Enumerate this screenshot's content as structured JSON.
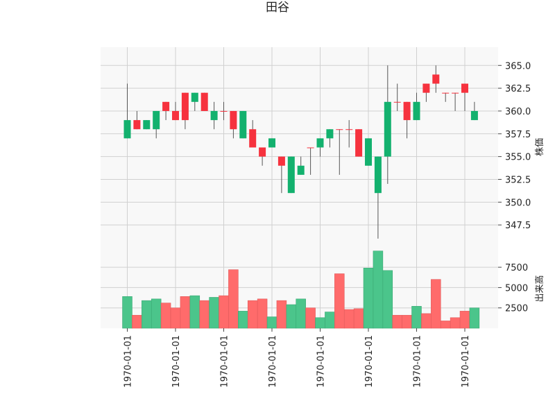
{
  "chart_data": {
    "type": "candlestick",
    "title": "田谷",
    "price_axis_label": "株価",
    "volume_axis_label": "出来高",
    "price_ylim": [
      345.0,
      367.0
    ],
    "price_ticks": [
      "365.0",
      "362.5",
      "360.0",
      "357.5",
      "355.0",
      "352.5",
      "350.0",
      "347.5"
    ],
    "volume_ylim": [
      0,
      9900
    ],
    "volume_ticks": [
      "7500",
      "5000",
      "2500"
    ],
    "x_tick_labels": [
      "1970-01-01",
      "1970-01-01",
      "1970-01-01",
      "1970-01-01",
      "1970-01-01",
      "1970-01-01",
      "1970-01-01",
      "1970-01-01"
    ],
    "x_tick_positions": [
      0.5,
      5.5,
      10.5,
      15.5,
      20.5,
      25.5,
      30.5,
      35.5
    ],
    "grid": true,
    "colors": {
      "up": "#f6323e",
      "down": "#13b16e",
      "up_volume": "#ff6b6b",
      "down_volume": "#4bc58b",
      "wick": "#555555",
      "plot_bg": "#f8f8f8",
      "grid": "#d0d0d0"
    },
    "candles": [
      {
        "open": 359,
        "close": 357,
        "high": 363,
        "low": 357,
        "volume": 3900
      },
      {
        "open": 358,
        "close": 359,
        "high": 360,
        "low": 358,
        "volume": 1600
      },
      {
        "open": 359,
        "close": 358,
        "high": 359,
        "low": 358,
        "volume": 3400
      },
      {
        "open": 360,
        "close": 358,
        "high": 360,
        "low": 357,
        "volume": 3600
      },
      {
        "open": 360,
        "close": 361,
        "high": 361,
        "low": 359,
        "volume": 3100
      },
      {
        "open": 359,
        "close": 360,
        "high": 361,
        "low": 359,
        "volume": 2500
      },
      {
        "open": 359,
        "close": 362,
        "high": 362,
        "low": 358,
        "volume": 3900
      },
      {
        "open": 362,
        "close": 361,
        "high": 362,
        "low": 360,
        "volume": 4000
      },
      {
        "open": 360,
        "close": 362,
        "high": 362,
        "low": 360,
        "volume": 3400
      },
      {
        "open": 360,
        "close": 359,
        "high": 361,
        "low": 358,
        "volume": 3800
      },
      {
        "open": 360,
        "close": 360,
        "high": 361,
        "low": 359,
        "volume": 4000
      },
      {
        "open": 358,
        "close": 360,
        "high": 360,
        "low": 357,
        "volume": 7200
      },
      {
        "open": 360,
        "close": 357,
        "high": 360,
        "low": 357,
        "volume": 2100
      },
      {
        "open": 356,
        "close": 358,
        "high": 359,
        "low": 356,
        "volume": 3400
      },
      {
        "open": 355,
        "close": 356,
        "high": 356,
        "low": 354,
        "volume": 3600
      },
      {
        "open": 357,
        "close": 356,
        "high": 357,
        "low": 356,
        "volume": 1400
      },
      {
        "open": 354,
        "close": 355,
        "high": 355,
        "low": 351,
        "volume": 3400
      },
      {
        "open": 355,
        "close": 351,
        "high": 355,
        "low": 351,
        "volume": 2900
      },
      {
        "open": 354,
        "close": 353,
        "high": 355,
        "low": 353,
        "volume": 3600
      },
      {
        "open": 356,
        "close": 356,
        "high": 356,
        "low": 353,
        "volume": 2500
      },
      {
        "open": 357,
        "close": 356,
        "high": 357,
        "low": 355,
        "volume": 1300
      },
      {
        "open": 358,
        "close": 357,
        "high": 358,
        "low": 356,
        "volume": 2000
      },
      {
        "open": 358,
        "close": 358,
        "high": 358,
        "low": 353,
        "volume": 6700
      },
      {
        "open": 358,
        "close": 358,
        "high": 359,
        "low": 356,
        "volume": 2300
      },
      {
        "open": 355,
        "close": 358,
        "high": 358,
        "low": 355,
        "volume": 2400
      },
      {
        "open": 357,
        "close": 354,
        "high": 357,
        "low": 354,
        "volume": 7400
      },
      {
        "open": 355,
        "close": 351,
        "high": 355,
        "low": 346,
        "volume": 9500
      },
      {
        "open": 361,
        "close": 355,
        "high": 365,
        "low": 352,
        "volume": 7100
      },
      {
        "open": 361,
        "close": 361,
        "high": 363,
        "low": 360,
        "volume": 1600
      },
      {
        "open": 359,
        "close": 361,
        "high": 361,
        "low": 357,
        "volume": 1600
      },
      {
        "open": 361,
        "close": 359,
        "high": 362,
        "low": 359,
        "volume": 2700
      },
      {
        "open": 362,
        "close": 363,
        "high": 363,
        "low": 361,
        "volume": 1800
      },
      {
        "open": 363,
        "close": 364,
        "high": 365,
        "low": 362,
        "volume": 6000
      },
      {
        "open": 362,
        "close": 362,
        "high": 362,
        "low": 361,
        "volume": 900
      },
      {
        "open": 362,
        "close": 362,
        "high": 362,
        "low": 360,
        "volume": 1300
      },
      {
        "open": 362,
        "close": 363,
        "high": 363,
        "low": 360,
        "volume": 2100
      },
      {
        "open": 360,
        "close": 359,
        "high": 361,
        "low": 359,
        "volume": 2500
      }
    ]
  }
}
